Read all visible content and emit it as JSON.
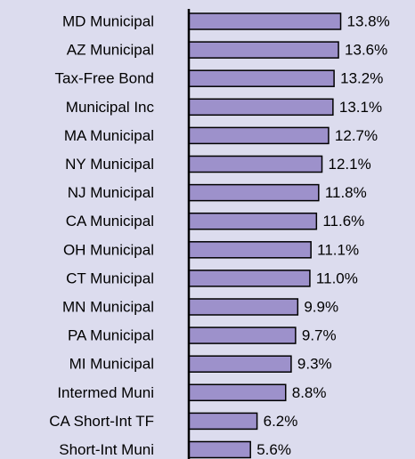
{
  "chart_data": {
    "type": "bar",
    "orientation": "horizontal",
    "categories": [
      "MD Municipal",
      "AZ Municipal",
      "Tax-Free Bond",
      "Municipal Inc",
      "MA Municipal",
      "NY Municipal",
      "NJ Municipal",
      "CA Municipal",
      "OH Municipal",
      "CT Municipal",
      "MN Municipal",
      "PA Municipal",
      "MI Municipal",
      "Intermed Muni",
      "CA Short-Int TF",
      "Short-Int Muni"
    ],
    "values": [
      13.8,
      13.6,
      13.2,
      13.1,
      12.7,
      12.1,
      11.8,
      11.6,
      11.1,
      11.0,
      9.9,
      9.7,
      9.3,
      8.8,
      6.2,
      5.6
    ],
    "value_labels": [
      "13.8%",
      "13.6%",
      "13.2%",
      "13.1%",
      "12.7%",
      "12.1%",
      "11.8%",
      "11.6%",
      "11.1%",
      "11.0%",
      "9.9%",
      "9.7%",
      "9.3%",
      "8.8%",
      "6.2%",
      "5.6%"
    ],
    "color": "#9d91cb",
    "xlim": [
      0,
      14
    ]
  }
}
